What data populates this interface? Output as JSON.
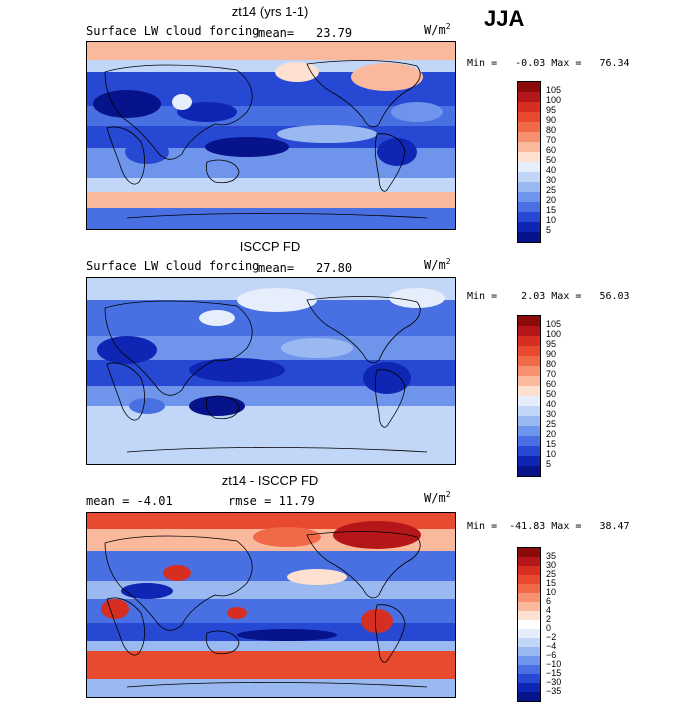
{
  "season": "JJA",
  "panels": [
    {
      "title": "zt14 (yrs 1-1)",
      "variable": "Surface LW cloud forcing",
      "mean_label": "mean=",
      "mean_value": "23.79",
      "units_base": "W/m",
      "units_exp": "2",
      "stats": "Min =   -0.03 Max =   76.34",
      "levels": [
        "105",
        "100",
        "95",
        "90",
        "80",
        "70",
        "60",
        "50",
        "40",
        "30",
        "25",
        "20",
        "15",
        "10",
        "5"
      ],
      "colors": [
        "#8b0a0a",
        "#b5161a",
        "#d62f22",
        "#e84a2f",
        "#f06a47",
        "#f6906f",
        "#fab99c",
        "#fde0cf",
        "#e6eefc",
        "#c2d6f7",
        "#9bb9f1",
        "#6e95eb",
        "#4870e2",
        "#2648d2",
        "#0f26b4",
        "#06138a"
      ]
    },
    {
      "title": "ISCCP FD",
      "variable": "Surface LW cloud forcing",
      "mean_label": "mean=",
      "mean_value": "27.80",
      "units_base": "W/m",
      "units_exp": "2",
      "stats": "Min =    2.03 Max =   56.03",
      "levels": [
        "105",
        "100",
        "95",
        "90",
        "80",
        "70",
        "60",
        "50",
        "40",
        "30",
        "25",
        "20",
        "15",
        "10",
        "5"
      ],
      "colors": [
        "#8b0a0a",
        "#b5161a",
        "#d62f22",
        "#e84a2f",
        "#f06a47",
        "#f6906f",
        "#fab99c",
        "#fde0cf",
        "#e6eefc",
        "#c2d6f7",
        "#9bb9f1",
        "#6e95eb",
        "#4870e2",
        "#2648d2",
        "#0f26b4",
        "#06138a"
      ]
    },
    {
      "title": "zt14 - ISCCP FD",
      "mean_text": "mean =   -4.01",
      "rmse_text": "rmse =   11.79",
      "units_base": "W/m",
      "units_exp": "2",
      "stats": "Min =  -41.83 Max =   38.47",
      "levels": [
        "35",
        "30",
        "25",
        "15",
        "10",
        "6",
        "4",
        "2",
        "0",
        "−2",
        "−4",
        "−6",
        "−10",
        "−15",
        "−30",
        "−35"
      ],
      "colors": [
        "#8b0a0a",
        "#b5161a",
        "#d62f22",
        "#e84a2f",
        "#f06a47",
        "#f6906f",
        "#fab99c",
        "#fde0cf",
        "#ffffff",
        "#e6eefc",
        "#c2d6f7",
        "#9bb9f1",
        "#6e95eb",
        "#4870e2",
        "#2648d2",
        "#0f26b4",
        "#06138a"
      ]
    }
  ]
}
